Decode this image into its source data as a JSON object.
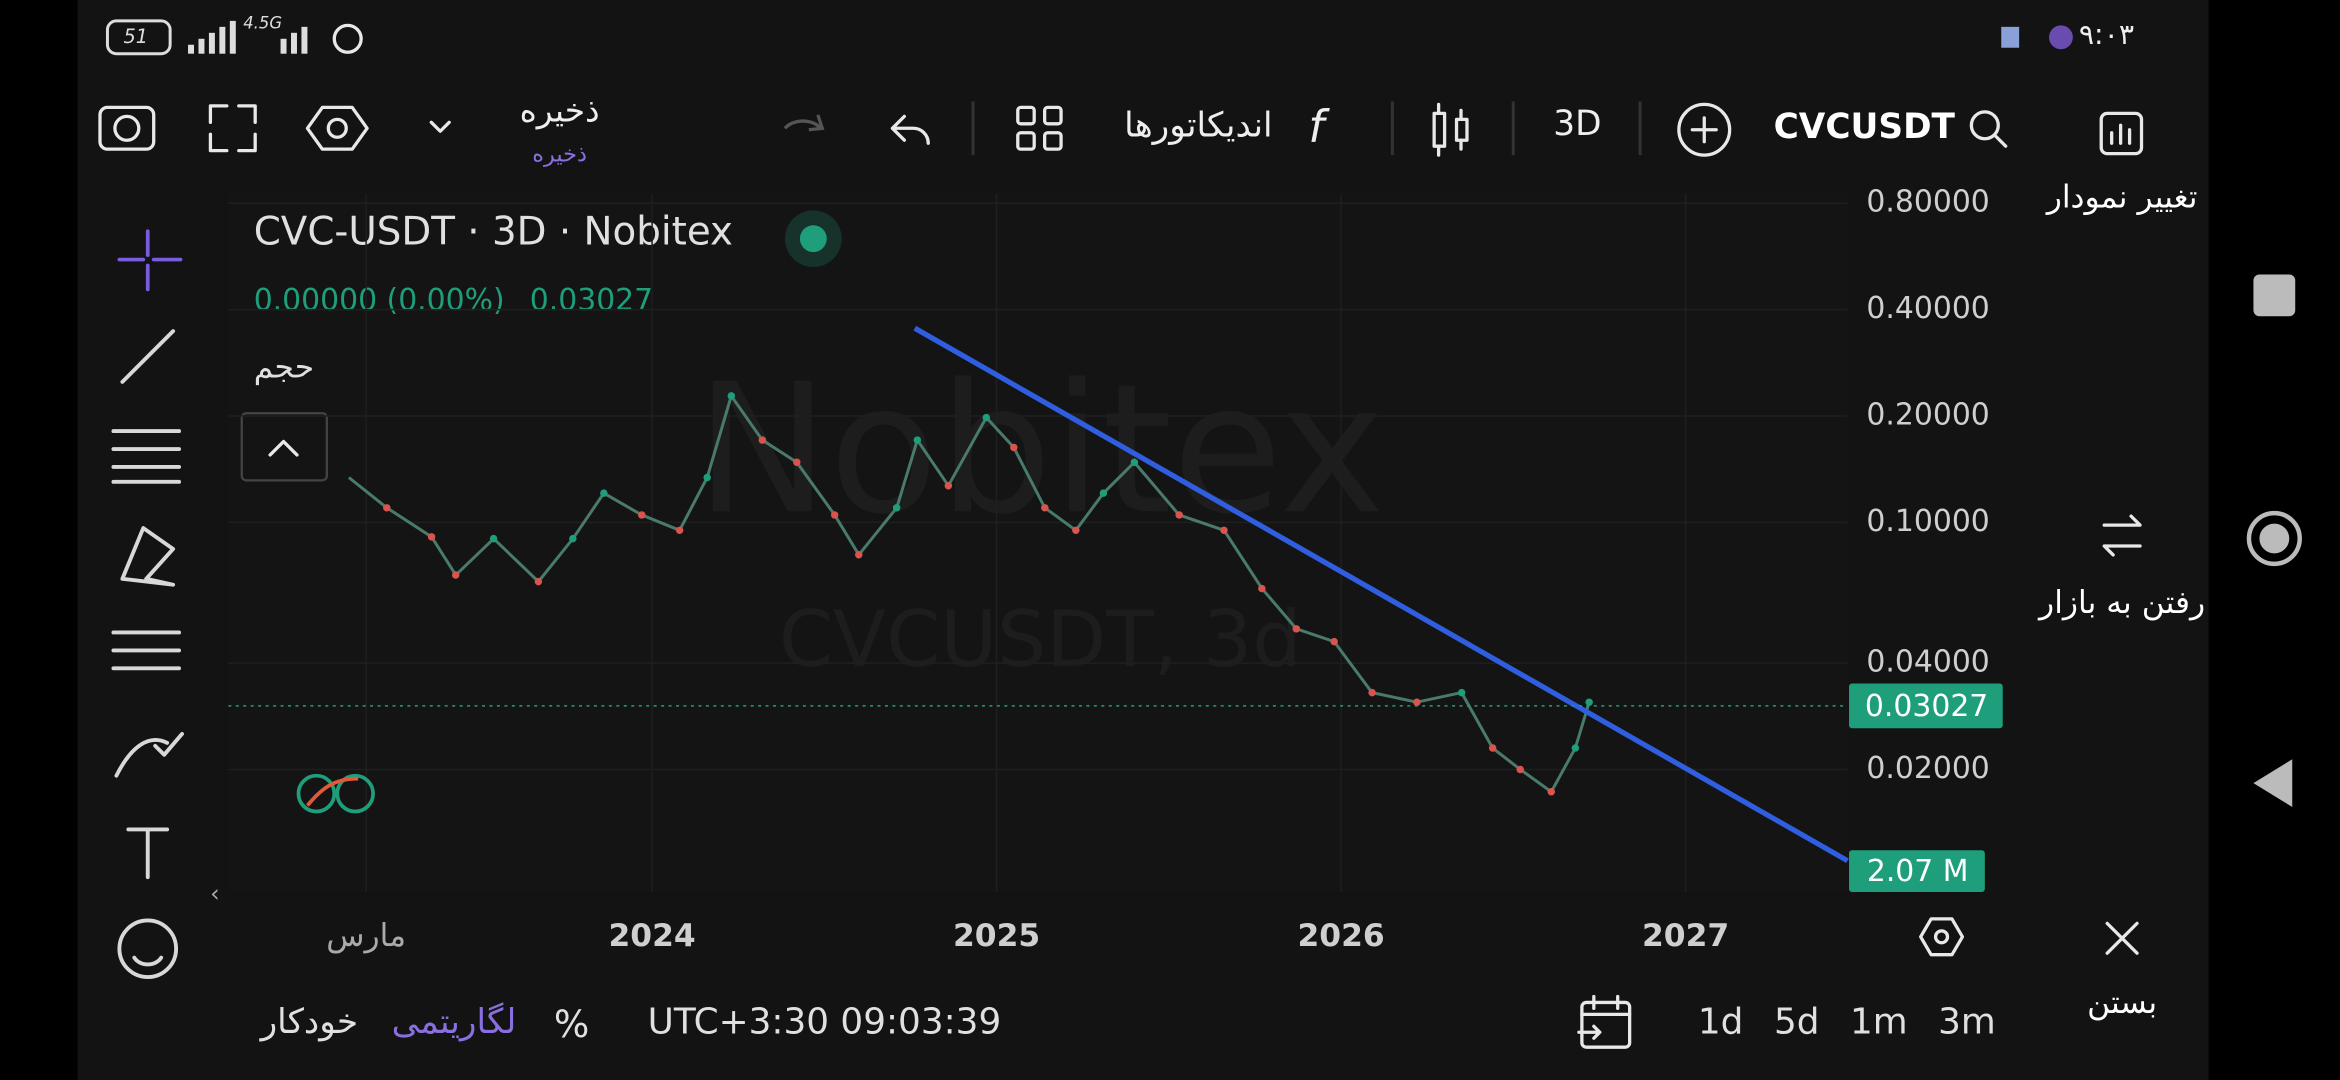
{
  "status_bar": {
    "battery": "51",
    "network": "4.5G",
    "time": "۹:۰۳"
  },
  "toolbar": {
    "save": "ذخیره",
    "save_sub": "ذخیره",
    "indicators": "اندیکاتورها",
    "interval": "3D",
    "symbol": "CVCUSDT"
  },
  "side_panel": {
    "change_chart": "تغییر نمودار",
    "go_market": "رفتن به بازار",
    "close": "بستن"
  },
  "legend": {
    "title": "CVC-USDT · 3D · Nobitex",
    "change": "0.00000 (0.00%)",
    "volume_label": "حجم"
  },
  "watermark": {
    "brand": "Nobitex",
    "symbol": "CVCUSDT, 3d"
  },
  "chart_data": {
    "type": "line",
    "log_scale": true,
    "color": "#4a7a6a",
    "x": [
      2023.12,
      2023.23,
      2023.36,
      2023.43,
      2023.54,
      2023.67,
      2023.77,
      2023.86,
      2023.97,
      2024.08,
      2024.16,
      2024.23,
      2024.32,
      2024.42,
      2024.53,
      2024.6,
      2024.71,
      2024.77,
      2024.86,
      2024.97,
      2025.05,
      2025.14,
      2025.23,
      2025.31,
      2025.4,
      2025.53,
      2025.66,
      2025.77,
      2025.87,
      2025.98,
      2026.09,
      2026.22,
      2026.35,
      2026.44,
      2026.52,
      2026.61,
      2026.68,
      2026.72
    ],
    "values": [
      0.134,
      0.11,
      0.091,
      0.071,
      0.09,
      0.068,
      0.09,
      0.121,
      0.105,
      0.095,
      0.134,
      0.228,
      0.171,
      0.148,
      0.105,
      0.081,
      0.11,
      0.171,
      0.127,
      0.198,
      0.163,
      0.11,
      0.095,
      0.121,
      0.148,
      0.105,
      0.095,
      0.065,
      0.05,
      0.046,
      0.033,
      0.031,
      0.033,
      0.023,
      0.02,
      0.0173,
      0.023,
      0.031
    ],
    "last_price": 0.03027,
    "last_volume": "2.07 M",
    "xlim": [
      2022.77,
      2027.47
    ],
    "ylim": [
      0.009,
      0.85
    ],
    "xticks": [
      {
        "value": 2023.17,
        "label": "مارس"
      },
      2024,
      2025,
      2026,
      2027
    ],
    "yticks": [
      {
        "value": 0.8,
        "label": "0.80000"
      },
      {
        "value": 0.4,
        "label": "0.40000"
      },
      {
        "value": 0.2,
        "label": "0.20000"
      },
      {
        "value": 0.1,
        "label": "0.10000"
      },
      {
        "value": 0.04,
        "label": "0.04000"
      },
      {
        "value": 0.02,
        "label": "0.02000"
      }
    ],
    "grid": true
  },
  "bottom_bar": {
    "auto": "خودکار",
    "log": "لگاریتمی",
    "percent": "%",
    "clock": "UTC+3:30 09:03:39",
    "ranges": [
      "1d",
      "5d",
      "1m",
      "3m"
    ]
  }
}
